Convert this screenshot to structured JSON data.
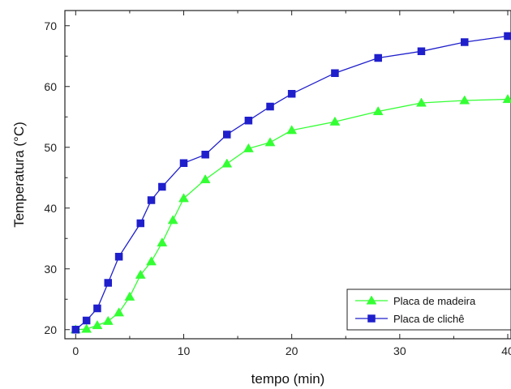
{
  "chart_data": {
    "type": "line",
    "xlabel": "tempo (min)",
    "ylabel": "Temperatura (°C)",
    "xlim": [
      -1,
      40.3
    ],
    "ylim": [
      18.5,
      72.5
    ],
    "xticks": [
      0,
      10,
      20,
      30,
      40
    ],
    "yticks": [
      20,
      30,
      40,
      50,
      60,
      70
    ],
    "x_minor_step": 5,
    "y_minor_step": 5,
    "grid": false,
    "legend_position": "bottom-right",
    "series": [
      {
        "name": "Placa de madeira",
        "color": "#33ff33",
        "marker": "triangle",
        "x": [
          0,
          1,
          2,
          3,
          4,
          5,
          6,
          7,
          8,
          9,
          10,
          12,
          14,
          16,
          18,
          20,
          24,
          28,
          32,
          36,
          40
        ],
        "y": [
          20.0,
          20.1,
          20.7,
          21.4,
          22.8,
          25.4,
          29.0,
          31.2,
          34.3,
          38.0,
          41.6,
          44.7,
          47.3,
          49.8,
          50.8,
          52.8,
          54.2,
          55.9,
          57.3,
          57.7,
          57.9
        ]
      },
      {
        "name": "Placa de clichê",
        "color": "#1f1fcc",
        "marker": "square",
        "x": [
          0,
          1,
          2,
          3,
          4,
          6,
          7,
          8,
          10,
          12,
          14,
          16,
          18,
          20,
          24,
          28,
          32,
          36,
          40
        ],
        "y": [
          20.0,
          21.5,
          23.5,
          27.7,
          32.0,
          37.5,
          41.3,
          43.5,
          47.4,
          48.8,
          52.1,
          54.4,
          56.7,
          58.8,
          62.2,
          64.7,
          65.8,
          67.3,
          68.3
        ]
      }
    ]
  }
}
